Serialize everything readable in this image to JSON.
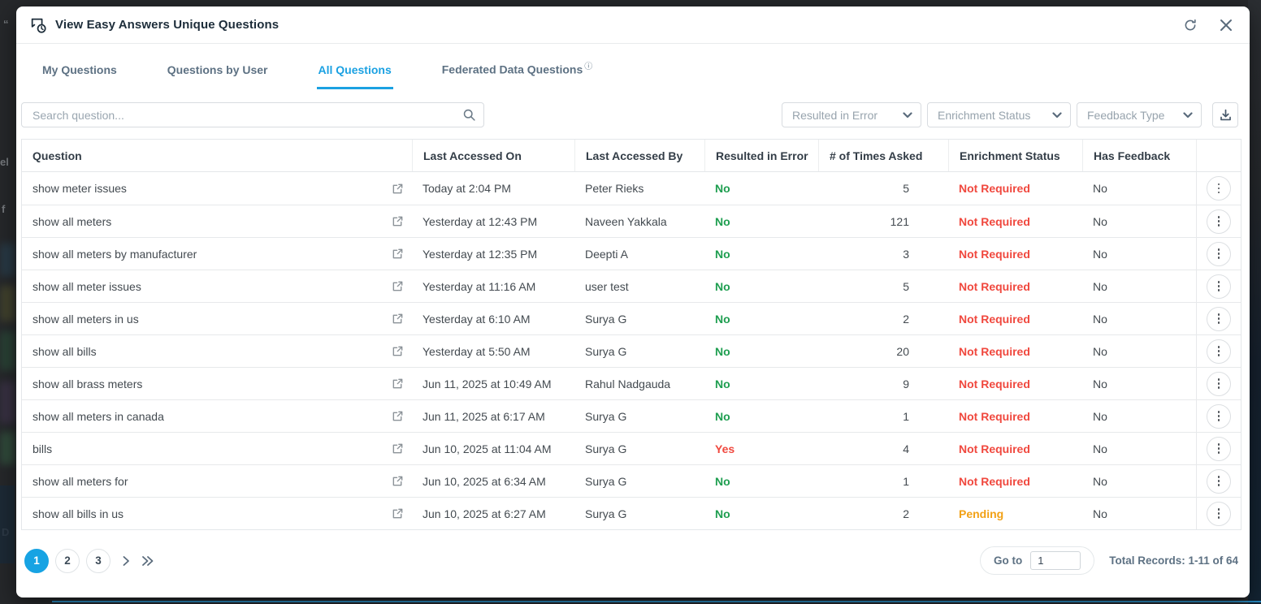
{
  "header": {
    "title": "View Easy Answers Unique Questions"
  },
  "tabs": [
    {
      "label": "My Questions"
    },
    {
      "label": "Questions by User"
    },
    {
      "label": "All Questions"
    },
    {
      "label": "Federated Data Questions"
    }
  ],
  "toolbar": {
    "search_placeholder": "Search question...",
    "filters": [
      {
        "label": "Resulted in Error"
      },
      {
        "label": "Enrichment Status"
      },
      {
        "label": "Feedback Type"
      }
    ]
  },
  "table": {
    "columns": [
      "Question",
      "Last Accessed On",
      "Last Accessed By",
      "Resulted in Error",
      "# of Times Asked",
      "Enrichment Status",
      "Has Feedback"
    ],
    "rows": [
      {
        "question": "show meter issues",
        "last_accessed_on": "Today at 2:04 PM",
        "last_accessed_by": "Peter Rieks",
        "resulted_in_error": "No",
        "times_asked": "5",
        "enrichment_status": "Not Required",
        "has_feedback": "No"
      },
      {
        "question": "show all meters",
        "last_accessed_on": "Yesterday at 12:43 PM",
        "last_accessed_by": "Naveen Yakkala",
        "resulted_in_error": "No",
        "times_asked": "121",
        "enrichment_status": "Not Required",
        "has_feedback": "No"
      },
      {
        "question": "show all meters by manufacturer",
        "last_accessed_on": "Yesterday at 12:35 PM",
        "last_accessed_by": "Deepti A",
        "resulted_in_error": "No",
        "times_asked": "3",
        "enrichment_status": "Not Required",
        "has_feedback": "No"
      },
      {
        "question": "show all meter issues",
        "last_accessed_on": "Yesterday at 11:16 AM",
        "last_accessed_by": "user test",
        "resulted_in_error": "No",
        "times_asked": "5",
        "enrichment_status": "Not Required",
        "has_feedback": "No"
      },
      {
        "question": "show all meters in us",
        "last_accessed_on": "Yesterday at 6:10 AM",
        "last_accessed_by": "Surya G",
        "resulted_in_error": "No",
        "times_asked": "2",
        "enrichment_status": "Not Required",
        "has_feedback": "No"
      },
      {
        "question": "show all bills",
        "last_accessed_on": "Yesterday at 5:50 AM",
        "last_accessed_by": "Surya G",
        "resulted_in_error": "No",
        "times_asked": "20",
        "enrichment_status": "Not Required",
        "has_feedback": "No"
      },
      {
        "question": "show all brass meters",
        "last_accessed_on": "Jun 11, 2025 at 10:49 AM",
        "last_accessed_by": "Rahul Nadgauda",
        "resulted_in_error": "No",
        "times_asked": "9",
        "enrichment_status": "Not Required",
        "has_feedback": "No"
      },
      {
        "question": "show all meters in canada",
        "last_accessed_on": "Jun 11, 2025 at 6:17 AM",
        "last_accessed_by": "Surya G",
        "resulted_in_error": "No",
        "times_asked": "1",
        "enrichment_status": "Not Required",
        "has_feedback": "No"
      },
      {
        "question": "bills",
        "last_accessed_on": "Jun 10, 2025 at 11:04 AM",
        "last_accessed_by": "Surya G",
        "resulted_in_error": "Yes",
        "times_asked": "4",
        "enrichment_status": "Not Required",
        "has_feedback": "No"
      },
      {
        "question": "show all meters for",
        "last_accessed_on": "Jun 10, 2025 at 6:34 AM",
        "last_accessed_by": "Surya G",
        "resulted_in_error": "No",
        "times_asked": "1",
        "enrichment_status": "Not Required",
        "has_feedback": "No"
      },
      {
        "question": "show all bills in us",
        "last_accessed_on": "Jun 10, 2025 at 6:27 AM",
        "last_accessed_by": "Surya G",
        "resulted_in_error": "No",
        "times_asked": "2",
        "enrichment_status": "Pending",
        "has_feedback": "No"
      }
    ]
  },
  "pagination": {
    "pages": [
      "1",
      "2",
      "3"
    ],
    "active_page": "1",
    "goto_label": "Go to",
    "goto_value": "1",
    "total_records": "Total Records: 1-11 of 64"
  },
  "colors": {
    "accent": "#1ba1e2",
    "success": "#1e9e50",
    "error": "#f0483e",
    "warning": "#f2a115"
  }
}
